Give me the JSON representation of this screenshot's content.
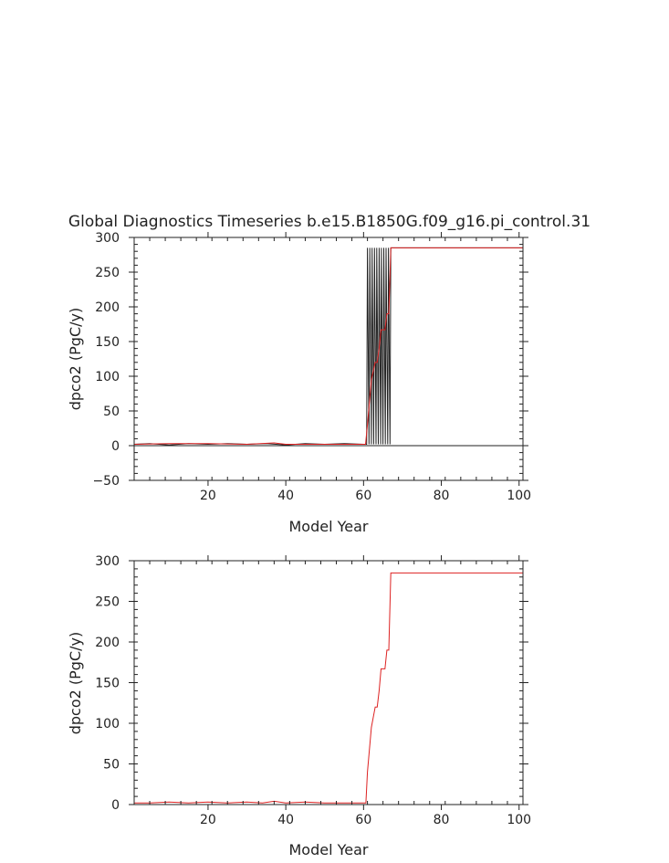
{
  "chart_data": [
    {
      "type": "line",
      "title": "Global Diagnostics Timeseries b.e15.B1850G.f09_g16.pi_control.31",
      "xlabel": "Model Year",
      "ylabel": "dpco2 (PgC/y)",
      "xlim": [
        1,
        101
      ],
      "ylim": [
        -50,
        300
      ],
      "xticks": [
        20,
        40,
        60,
        80,
        100
      ],
      "yticks": [
        -50,
        0,
        50,
        100,
        150,
        200,
        250,
        300
      ],
      "zero_line": true,
      "series": [
        {
          "color": "#222222",
          "style": "monthly",
          "x": [
            1,
            5,
            10,
            15,
            20,
            25,
            30,
            35,
            40,
            45,
            50,
            55,
            60,
            60.8,
            61.0,
            61.4,
            61.6,
            62.0,
            62.2,
            62.6,
            62.8,
            63.2,
            63.4,
            63.8,
            64.0,
            64.4,
            64.6,
            65.0,
            65.2,
            65.6,
            65.8,
            66.2,
            66.4,
            66.8,
            67.0,
            67.3,
            70,
            80,
            90,
            101
          ],
          "values": [
            2,
            3,
            1,
            3,
            2,
            3,
            2,
            3,
            1,
            3,
            2,
            3,
            2,
            2,
            285,
            2,
            285,
            2,
            285,
            2,
            285,
            2,
            285,
            2,
            285,
            2,
            285,
            2,
            285,
            2,
            285,
            2,
            285,
            2,
            285,
            285,
            285,
            285,
            285,
            285
          ]
        },
        {
          "color": "#dd2222",
          "style": "annual",
          "x": [
            1,
            10,
            20,
            30,
            37,
            40,
            50,
            60,
            60.5,
            61,
            62,
            63,
            63.5,
            64,
            64.5,
            65,
            65.5,
            66,
            66.5,
            67,
            67.5,
            70,
            80,
            90,
            101
          ],
          "values": [
            2,
            3,
            3,
            2,
            4,
            2,
            2,
            2,
            2,
            30,
            95,
            120,
            120,
            140,
            167,
            167,
            167,
            190,
            190,
            285,
            285,
            285,
            285,
            285,
            285
          ]
        }
      ]
    },
    {
      "type": "line",
      "title": "",
      "xlabel": "Model Year",
      "ylabel": "dpco2 (PgC/y)",
      "xlim": [
        1,
        101
      ],
      "ylim": [
        0,
        300
      ],
      "xticks": [
        20,
        40,
        60,
        80,
        100
      ],
      "yticks": [
        0,
        50,
        100,
        150,
        200,
        250,
        300
      ],
      "zero_line": false,
      "series": [
        {
          "color": "#dd2222",
          "style": "annual",
          "x": [
            1,
            5,
            10,
            15,
            20,
            25,
            30,
            34,
            37,
            40,
            45,
            50,
            55,
            60,
            60.6,
            61,
            62,
            63,
            63.5,
            64,
            64.5,
            65,
            65.5,
            66,
            66.5,
            67,
            67.5,
            70,
            80,
            90,
            101
          ],
          "values": [
            2,
            2,
            3,
            2,
            3,
            2,
            3,
            2,
            4,
            2,
            3,
            2,
            2,
            2,
            2,
            40,
            95,
            120,
            120,
            140,
            167,
            167,
            167,
            190,
            190,
            285,
            285,
            285,
            285,
            285,
            285
          ]
        }
      ]
    }
  ]
}
